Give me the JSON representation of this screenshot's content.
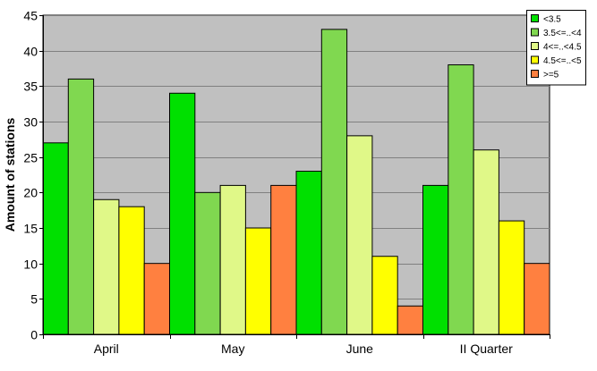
{
  "chart_data": {
    "type": "bar",
    "title": "",
    "xlabel": "",
    "ylabel": "Amount of stations",
    "ylim": [
      0,
      45
    ],
    "yticks": [
      0,
      5,
      10,
      15,
      20,
      25,
      30,
      35,
      40,
      45
    ],
    "grid": true,
    "legend_position": "top-right",
    "categories": [
      "April",
      "May",
      "June",
      "II Quarter"
    ],
    "series": [
      {
        "name": "<3.5",
        "color": "#00e000",
        "values": [
          27,
          34,
          23,
          21
        ]
      },
      {
        "name": "3.5<=..<4",
        "color": "#80d850",
        "values": [
          36,
          20,
          43,
          38
        ]
      },
      {
        "name": "4<=..<4.5",
        "color": "#e0f888",
        "values": [
          19,
          21,
          28,
          26
        ]
      },
      {
        "name": "4.5<=..<5",
        "color": "#ffff00",
        "values": [
          18,
          15,
          11,
          16
        ]
      },
      {
        "name": ">=5",
        "color": "#ff8040",
        "values": [
          10,
          21,
          4,
          10
        ]
      }
    ],
    "colors": {
      "plot_background": "#c0c0c0",
      "gridline": "#808080"
    }
  }
}
